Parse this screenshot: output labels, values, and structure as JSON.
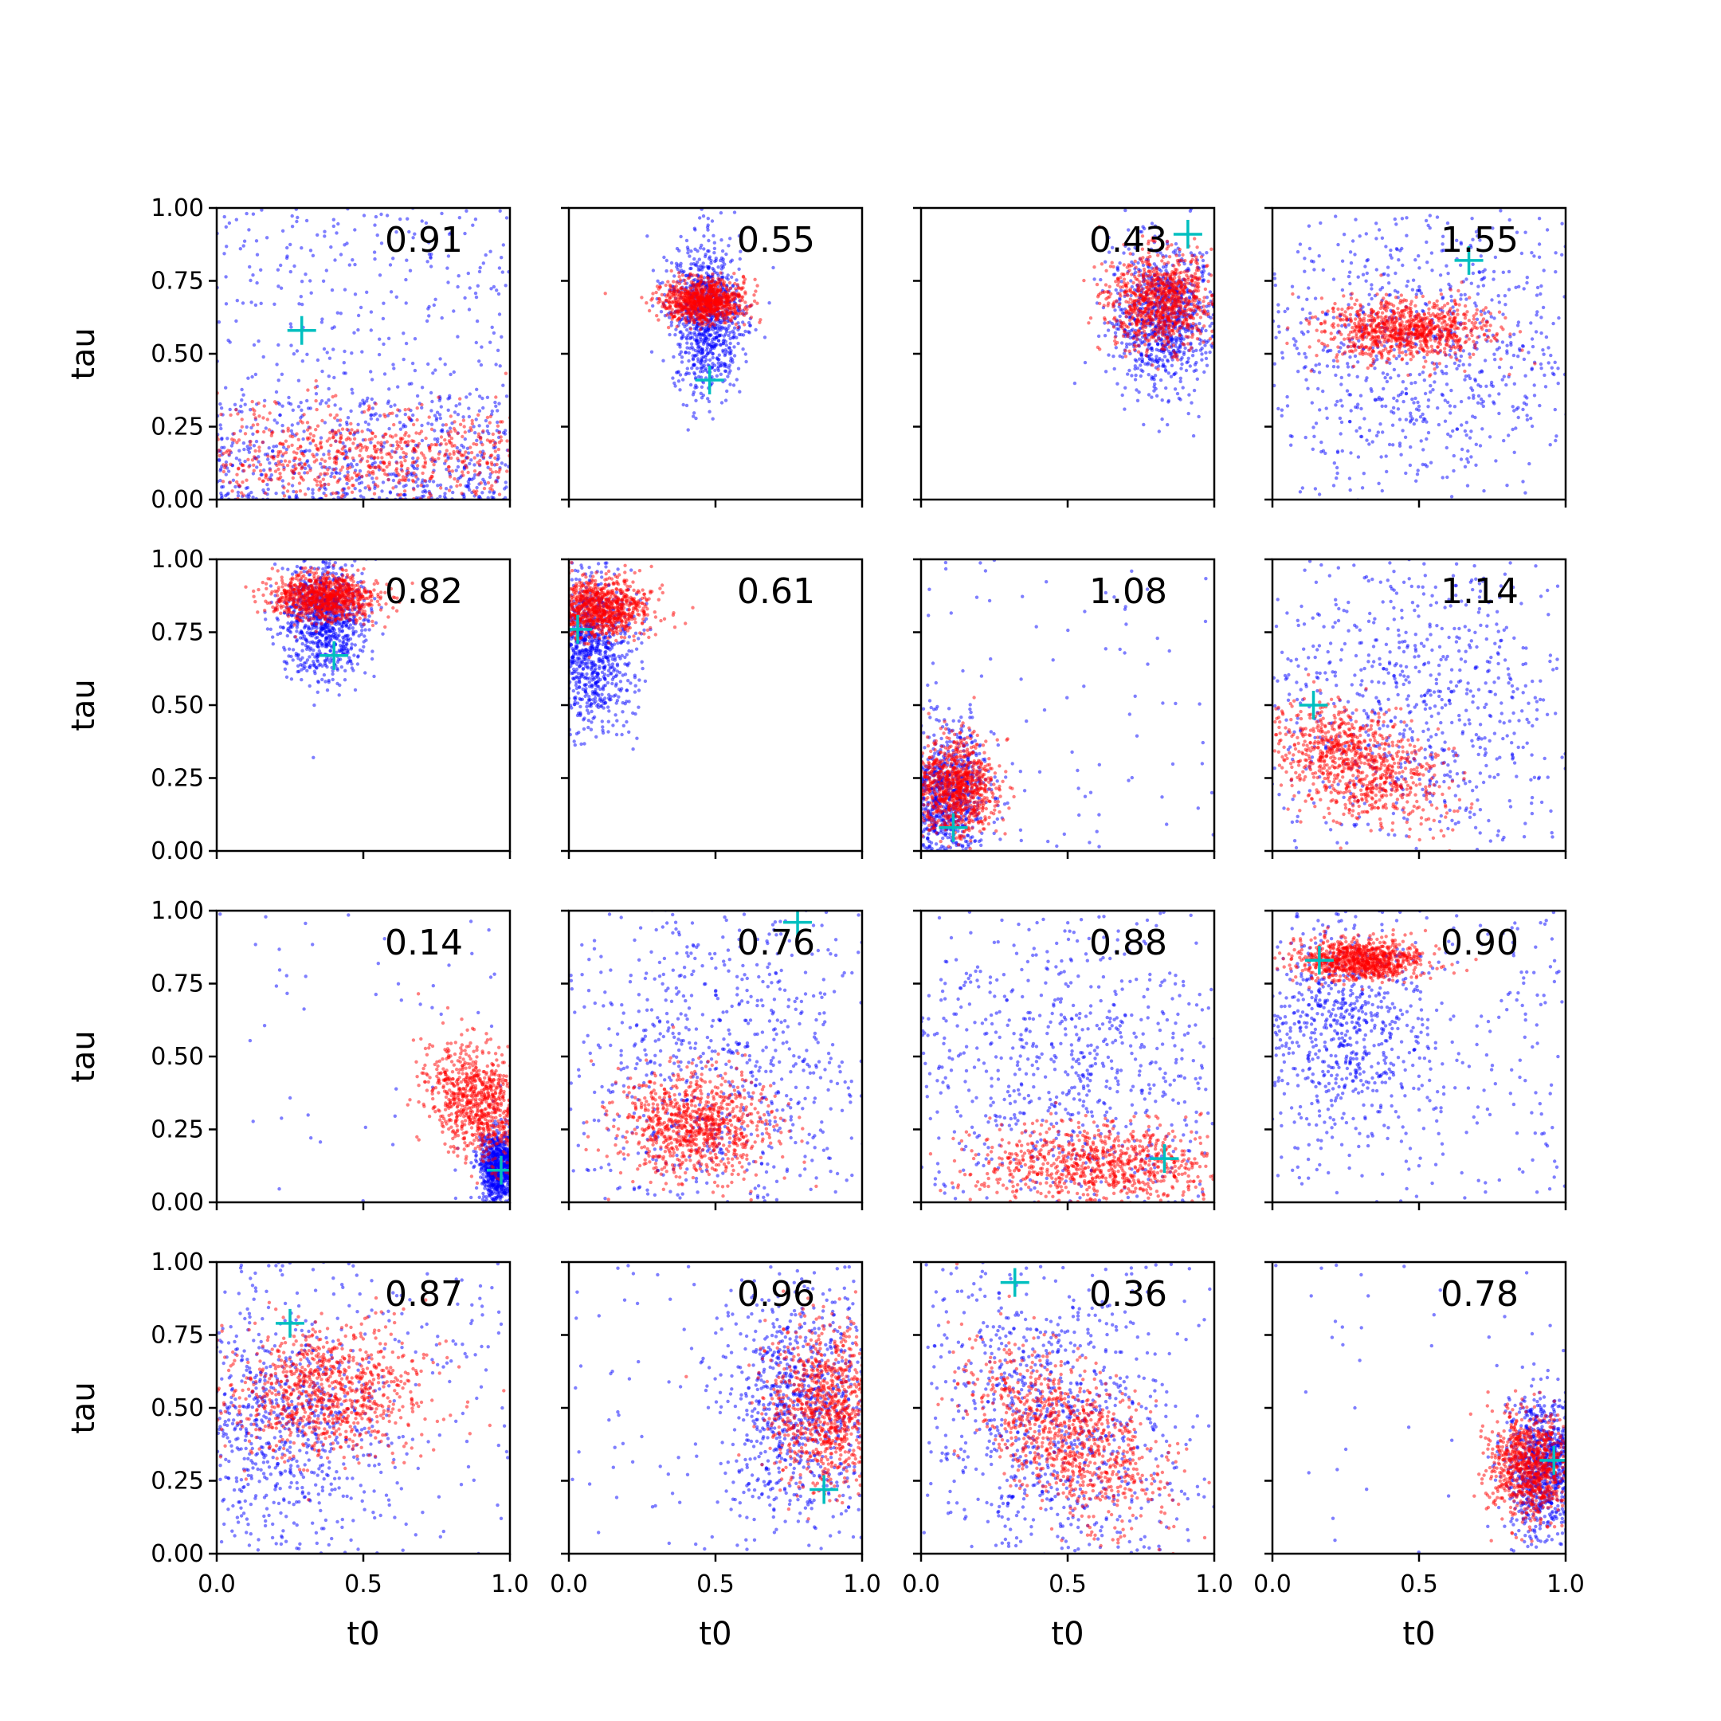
{
  "chart_data": {
    "type": "scatter",
    "layout": {
      "rows": 4,
      "cols": 4
    },
    "xlabel": "t0",
    "ylabel": "tau",
    "xlim": [
      0,
      1
    ],
    "ylim": [
      0,
      1
    ],
    "x_ticks": [
      0.0,
      0.5,
      1.0
    ],
    "x_tick_labels": [
      "0.0",
      "0.5",
      "1.0"
    ],
    "y_ticks": [
      0.0,
      0.25,
      0.5,
      0.75,
      1.0
    ],
    "y_tick_labels": [
      "0.00",
      "0.25",
      "0.50",
      "0.75",
      "1.00"
    ],
    "colors": {
      "series_a": "#0000ff",
      "series_b": "#ff0000",
      "marker": "#00bfbf",
      "frame": "#000000"
    },
    "grid": false,
    "marker_style": "plus",
    "panels": [
      {
        "value": "0.91",
        "marker": [
          0.29,
          0.58
        ],
        "series_a": {
          "type": "band",
          "ymax": 0.35,
          "bg": 0.5
        },
        "series_b": {
          "cx": 0.5,
          "cy": 0.14,
          "sx": 0.4,
          "sy": 0.09,
          "r": 0.0
        }
      },
      {
        "value": "0.55",
        "marker": [
          0.48,
          0.41
        ],
        "series_a": {
          "cx": 0.47,
          "cy": 0.63,
          "sx": 0.06,
          "sy": 0.13,
          "r": 0.0
        },
        "series_b": {
          "cx": 0.46,
          "cy": 0.68,
          "sx": 0.07,
          "sy": 0.035,
          "r": 0.0
        }
      },
      {
        "value": "0.43",
        "marker": [
          0.91,
          0.91
        ],
        "series_a": {
          "cx": 0.83,
          "cy": 0.62,
          "sx": 0.09,
          "sy": 0.13,
          "r": 0.0
        },
        "series_b": {
          "cx": 0.82,
          "cy": 0.68,
          "sx": 0.09,
          "sy": 0.08,
          "r": 0.0
        }
      },
      {
        "value": "1.55",
        "marker": [
          0.67,
          0.82
        ],
        "series_a": {
          "type": "wide",
          "cx": 0.5,
          "cy": 0.5,
          "sx": 0.3,
          "sy": 0.25
        },
        "series_b": {
          "cx": 0.45,
          "cy": 0.58,
          "sx": 0.14,
          "sy": 0.05,
          "r": 0.0
        }
      },
      {
        "value": "0.82",
        "marker": [
          0.4,
          0.67
        ],
        "series_a": {
          "cx": 0.37,
          "cy": 0.8,
          "sx": 0.07,
          "sy": 0.1,
          "r": 0.0
        },
        "series_b": {
          "cx": 0.37,
          "cy": 0.87,
          "sx": 0.09,
          "sy": 0.04,
          "r": 0.0
        }
      },
      {
        "value": "0.61",
        "marker": [
          0.03,
          0.76
        ],
        "series_a": {
          "cx": 0.07,
          "cy": 0.68,
          "sx": 0.07,
          "sy": 0.13,
          "r": 0.0
        },
        "series_b": {
          "cx": 0.1,
          "cy": 0.83,
          "sx": 0.09,
          "sy": 0.05,
          "r": 0.0
        }
      },
      {
        "value": "1.08",
        "marker": [
          0.11,
          0.08
        ],
        "series_a": {
          "cx": 0.08,
          "cy": 0.18,
          "sx": 0.07,
          "sy": 0.12,
          "r": 0.0,
          "bg": 0.1
        },
        "series_b": {
          "cx": 0.12,
          "cy": 0.22,
          "sx": 0.07,
          "sy": 0.08,
          "r": 0.0
        }
      },
      {
        "value": "1.14",
        "marker": [
          0.14,
          0.5
        ],
        "series_a": {
          "type": "wide",
          "cx": 0.5,
          "cy": 0.5,
          "sx": 0.3,
          "sy": 0.3
        },
        "series_b": {
          "cx": 0.28,
          "cy": 0.3,
          "sx": 0.14,
          "sy": 0.1,
          "r": -0.4
        }
      },
      {
        "value": "0.14",
        "marker": [
          0.97,
          0.11
        ],
        "series_a": {
          "cx": 0.96,
          "cy": 0.12,
          "sx": 0.03,
          "sy": 0.06,
          "r": 0.0,
          "bg": 0.05
        },
        "series_b": {
          "cx": 0.9,
          "cy": 0.34,
          "sx": 0.09,
          "sy": 0.1,
          "r": -0.3
        }
      },
      {
        "value": "0.76",
        "marker": [
          0.78,
          0.96
        ],
        "series_a": {
          "type": "wide",
          "cx": 0.5,
          "cy": 0.45,
          "sx": 0.3,
          "sy": 0.3
        },
        "series_b": {
          "cx": 0.43,
          "cy": 0.26,
          "sx": 0.13,
          "sy": 0.09,
          "r": 0.0
        }
      },
      {
        "value": "0.88",
        "marker": [
          0.83,
          0.15
        ],
        "series_a": {
          "type": "wide",
          "cx": 0.5,
          "cy": 0.45,
          "sx": 0.32,
          "sy": 0.3
        },
        "series_b": {
          "cx": 0.63,
          "cy": 0.13,
          "sx": 0.22,
          "sy": 0.07,
          "r": 0.0
        }
      },
      {
        "value": "0.90",
        "marker": [
          0.16,
          0.83
        ],
        "series_a": {
          "cx": 0.22,
          "cy": 0.62,
          "sx": 0.15,
          "sy": 0.17,
          "r": 0.0,
          "bg": 0.25
        },
        "series_b": {
          "cx": 0.3,
          "cy": 0.83,
          "sx": 0.11,
          "sy": 0.035,
          "r": 0.0
        }
      },
      {
        "value": "0.87",
        "marker": [
          0.25,
          0.79
        ],
        "series_a": {
          "cx": 0.2,
          "cy": 0.45,
          "sx": 0.17,
          "sy": 0.2,
          "r": 0.0,
          "bg": 0.2
        },
        "series_b": {
          "cx": 0.37,
          "cy": 0.55,
          "sx": 0.17,
          "sy": 0.11,
          "r": 0.0
        }
      },
      {
        "value": "0.96",
        "marker": [
          0.87,
          0.22
        ],
        "series_a": {
          "cx": 0.78,
          "cy": 0.52,
          "sx": 0.13,
          "sy": 0.2,
          "r": 0.0,
          "bg": 0.1
        },
        "series_b": {
          "cx": 0.88,
          "cy": 0.5,
          "sx": 0.1,
          "sy": 0.14,
          "r": 0.0
        }
      },
      {
        "value": "0.36",
        "marker": [
          0.32,
          0.93
        ],
        "series_a": {
          "cx": 0.45,
          "cy": 0.45,
          "sx": 0.2,
          "sy": 0.25,
          "r": -0.3,
          "bg": 0.15
        },
        "series_b": {
          "cx": 0.5,
          "cy": 0.4,
          "sx": 0.16,
          "sy": 0.15,
          "r": -0.55
        }
      },
      {
        "value": "0.78",
        "marker": [
          0.96,
          0.32
        ],
        "series_a": {
          "cx": 0.92,
          "cy": 0.3,
          "sx": 0.06,
          "sy": 0.12,
          "r": 0.0,
          "bg": 0.05
        },
        "series_b": {
          "cx": 0.88,
          "cy": 0.3,
          "sx": 0.07,
          "sy": 0.09,
          "r": 0.0
        }
      }
    ]
  }
}
